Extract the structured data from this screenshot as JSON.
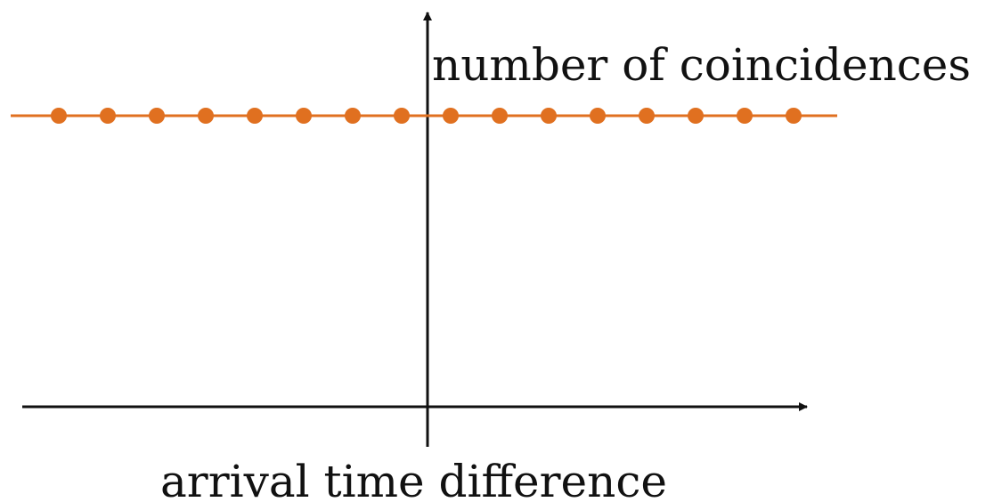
{
  "chart_data": {
    "type": "scatter",
    "xlabel": "arrival time difference",
    "ylabel": "number of coincidences",
    "series": [
      {
        "x": [
          -8,
          -7,
          -6,
          -5,
          -4,
          -3,
          -2,
          -1,
          0,
          1,
          2,
          3,
          4,
          5,
          6,
          7
        ],
        "values": [
          1,
          1,
          1,
          1,
          1,
          1,
          1,
          1,
          1,
          1,
          1,
          1,
          1,
          1,
          1,
          1
        ],
        "color": "#e07020"
      }
    ],
    "reference_line": {
      "y": 1,
      "color": "#e07020"
    },
    "axis_color": "#111111",
    "grid": false,
    "ticks": false
  }
}
